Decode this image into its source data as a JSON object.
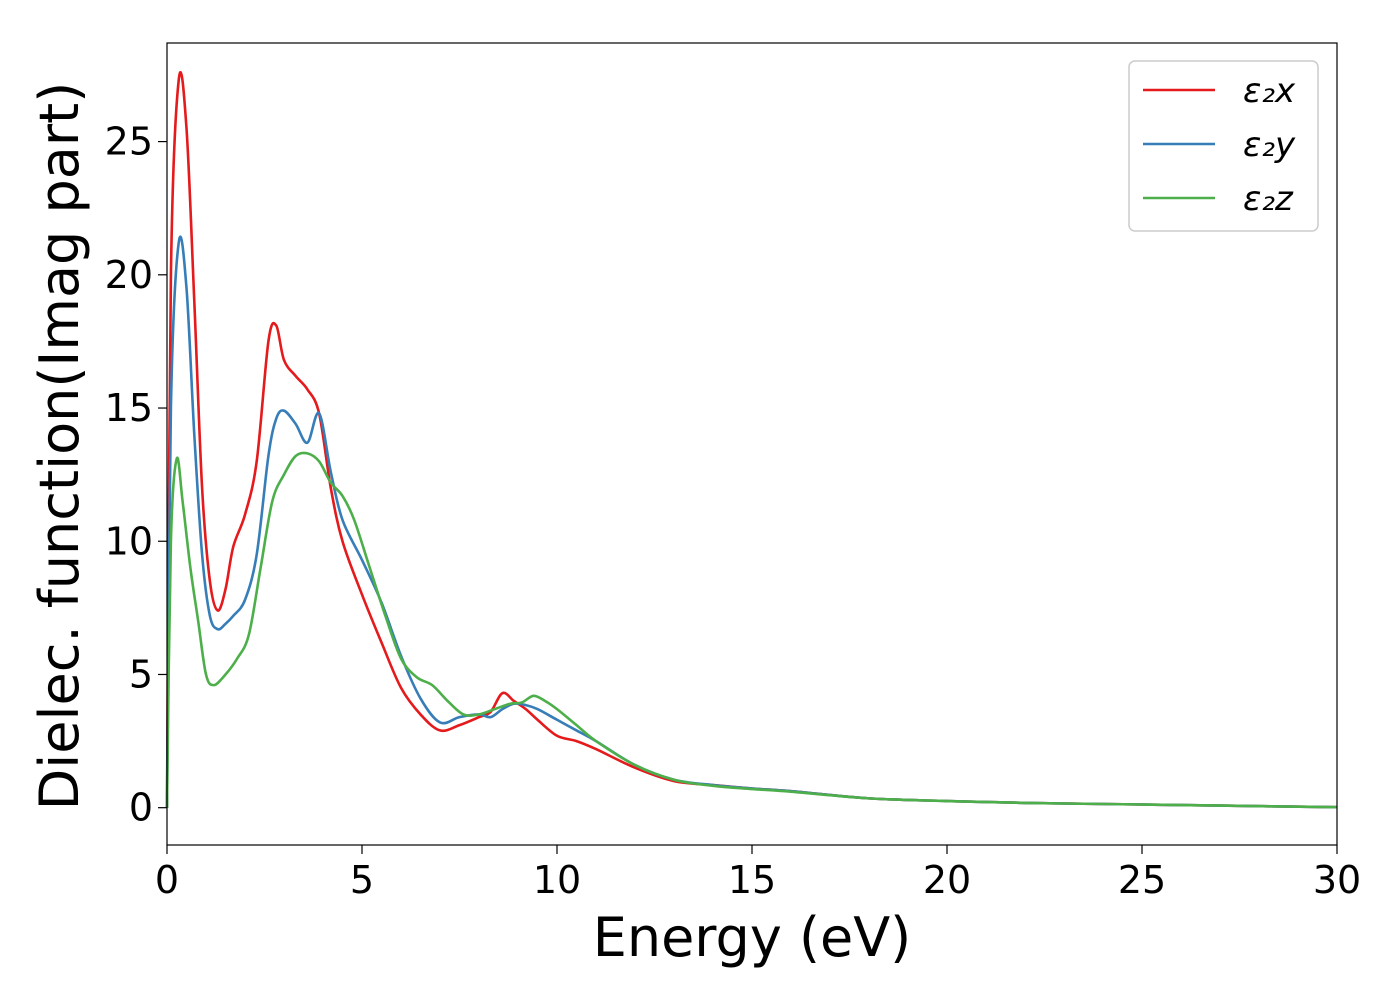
{
  "chart_data": {
    "type": "line",
    "xlabel": "Energy (eV)",
    "ylabel": "Dielec. function(Imag part)",
    "xlim": [
      0,
      30
    ],
    "ylim": [
      -1.4,
      28.7
    ],
    "xticks": [
      0,
      5,
      10,
      15,
      20,
      25,
      30
    ],
    "yticks": [
      0,
      5,
      10,
      15,
      20,
      25
    ],
    "grid": false,
    "legend_position": "top-right",
    "series": [
      {
        "name": "ε₂x",
        "color": "#e41a1c",
        "x": [
          0,
          0.1,
          0.3,
          0.5,
          0.7,
          0.9,
          1.1,
          1.3,
          1.5,
          1.7,
          2.0,
          2.3,
          2.6,
          2.8,
          3.0,
          3.3,
          3.6,
          3.9,
          4.2,
          4.5,
          5.0,
          5.5,
          6.0,
          6.5,
          7.0,
          7.5,
          8.0,
          8.3,
          8.6,
          8.9,
          9.2,
          9.5,
          10.0,
          10.5,
          11.0,
          12.0,
          13.0,
          14.0,
          15.0,
          16.0,
          18.0,
          20.0,
          22.0,
          25.0,
          27.0,
          30.0
        ],
        "y": [
          0,
          20,
          27.3,
          25.5,
          19,
          12,
          8.5,
          7.4,
          8.2,
          9.8,
          11.0,
          13.0,
          17.5,
          18.1,
          16.8,
          16.2,
          15.7,
          14.8,
          12.0,
          10.0,
          8.0,
          6.2,
          4.5,
          3.5,
          2.9,
          3.1,
          3.4,
          3.6,
          4.3,
          4.0,
          3.7,
          3.3,
          2.7,
          2.5,
          2.2,
          1.5,
          1.0,
          0.85,
          0.72,
          0.62,
          0.35,
          0.25,
          0.18,
          0.12,
          0.08,
          0.02
        ]
      },
      {
        "name": "ε₂y",
        "color": "#377eb8",
        "x": [
          0,
          0.1,
          0.3,
          0.5,
          0.7,
          0.9,
          1.1,
          1.3,
          1.5,
          1.7,
          2.0,
          2.3,
          2.6,
          2.8,
          3.0,
          3.3,
          3.6,
          3.9,
          4.2,
          4.5,
          5.0,
          5.5,
          6.0,
          6.5,
          7.0,
          7.5,
          8.0,
          8.3,
          8.6,
          8.9,
          9.2,
          9.5,
          10.0,
          10.5,
          11.0,
          12.0,
          13.0,
          14.0,
          15.0,
          16.0,
          18.0,
          20.0,
          22.0,
          25.0,
          27.0,
          30.0
        ],
        "y": [
          0,
          15,
          21.2,
          19.5,
          14,
          9.5,
          7.2,
          6.7,
          6.9,
          7.2,
          7.8,
          9.5,
          13.2,
          14.6,
          14.9,
          14.4,
          13.7,
          14.8,
          12.6,
          10.8,
          9.3,
          7.7,
          5.7,
          4.1,
          3.2,
          3.4,
          3.5,
          3.4,
          3.7,
          3.9,
          3.85,
          3.7,
          3.3,
          2.9,
          2.5,
          1.6,
          1.05,
          0.85,
          0.72,
          0.62,
          0.35,
          0.25,
          0.18,
          0.12,
          0.08,
          0.02
        ]
      },
      {
        "name": "ε₂z",
        "color": "#4daf4a",
        "x": [
          0,
          0.1,
          0.25,
          0.4,
          0.6,
          0.8,
          1.0,
          1.2,
          1.5,
          1.8,
          2.1,
          2.4,
          2.7,
          3.0,
          3.3,
          3.6,
          3.9,
          4.2,
          4.5,
          4.8,
          5.2,
          5.6,
          6.0,
          6.4,
          6.8,
          7.2,
          7.6,
          8.0,
          8.4,
          8.8,
          9.1,
          9.4,
          9.7,
          10.0,
          10.5,
          11.0,
          12.0,
          13.0,
          14.0,
          15.0,
          16.0,
          18.0,
          20.0,
          22.0,
          25.0,
          27.0,
          30.0
        ],
        "y": [
          0,
          10,
          13.1,
          11.5,
          9.0,
          7.0,
          5.0,
          4.6,
          5.0,
          5.6,
          6.5,
          9.0,
          11.5,
          12.5,
          13.2,
          13.3,
          13.0,
          12.2,
          11.7,
          10.8,
          9.0,
          7.2,
          5.6,
          4.9,
          4.6,
          4.0,
          3.5,
          3.5,
          3.7,
          3.9,
          3.95,
          4.2,
          4.0,
          3.7,
          3.1,
          2.5,
          1.6,
          1.05,
          0.82,
          0.7,
          0.6,
          0.35,
          0.25,
          0.18,
          0.12,
          0.08,
          0.02
        ]
      }
    ]
  }
}
